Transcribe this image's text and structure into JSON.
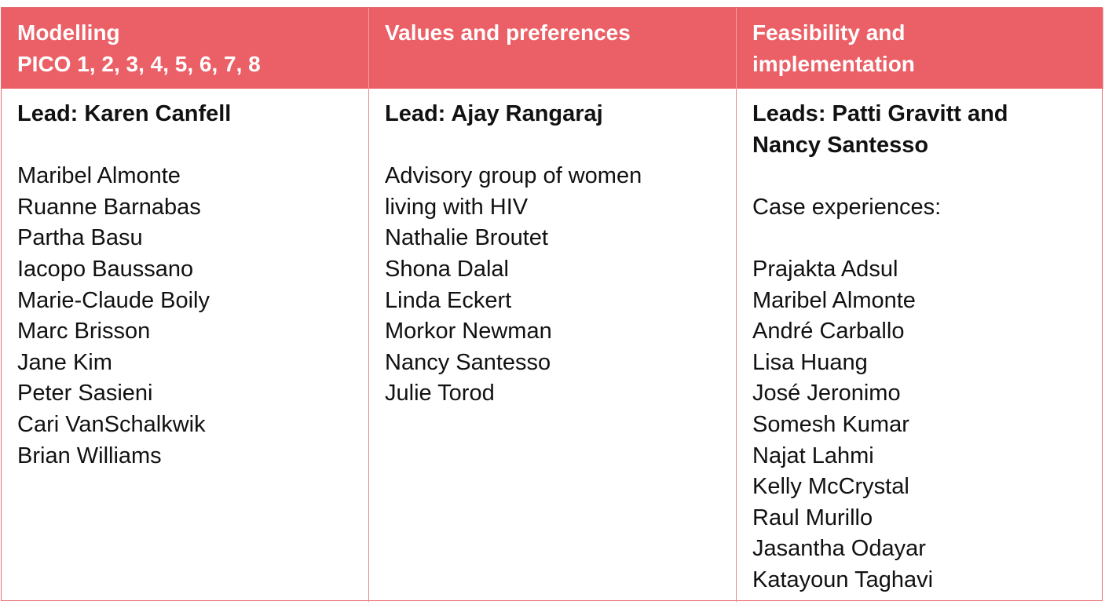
{
  "columns": [
    {
      "header_lines": [
        "Modelling",
        "PICO 1, 2, 3, 4, 5, 6, 7, 8"
      ],
      "lead_lines": [
        "Lead: Karen Canfell"
      ],
      "intro_lines": [],
      "members": [
        "Maribel Almonte",
        "Ruanne Barnabas",
        "Partha Basu",
        "Iacopo Baussano",
        "Marie-Claude Boily",
        "Marc Brisson",
        "Jane Kim",
        "Peter Sasieni",
        "Cari VanSchalkwik",
        "Brian Williams"
      ]
    },
    {
      "header_lines": [
        "Values and preferences"
      ],
      "lead_lines": [
        "Lead: Ajay Rangaraj"
      ],
      "intro_lines": [],
      "members": [
        "Advisory group of women",
        "living with HIV",
        "Nathalie Broutet",
        "Shona Dalal",
        "Linda Eckert",
        "Morkor Newman",
        "Nancy Santesso",
        "Julie Torod"
      ]
    },
    {
      "header_lines": [
        "Feasibility and",
        "implementation"
      ],
      "lead_lines": [
        "Leads: Patti Gravitt and",
        "Nancy Santesso"
      ],
      "intro_lines": [
        "Case experiences:"
      ],
      "members": [
        "Prajakta Adsul",
        "Maribel Almonte",
        "André Carballo",
        "Lisa Huang",
        "José Jeronimo",
        "Somesh Kumar",
        "Najat Lahmi",
        "Kelly McCrystal",
        "Raul Murillo",
        "Jasantha Odayar",
        "Katayoun Taghavi"
      ]
    }
  ],
  "colors": {
    "header_background": "#eb5f66",
    "header_text": "#ffffff",
    "border": "#e86a70",
    "body_text": "#111111"
  }
}
